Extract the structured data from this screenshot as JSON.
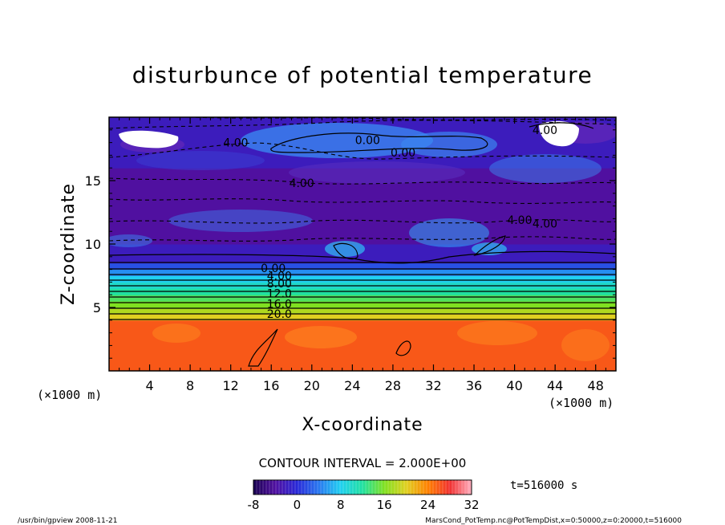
{
  "chart_data": {
    "type": "heatmap",
    "title": "disturbunce of potential temperature",
    "xlabel": "X-coordinate",
    "ylabel": "Z-coordinate",
    "x_unit_left": "(×1000 m)",
    "x_unit_right": "(×1000 m)",
    "xlim": [
      0,
      50
    ],
    "ylim": [
      0,
      20
    ],
    "x_ticks": [
      4,
      8,
      12,
      16,
      20,
      24,
      28,
      32,
      36,
      40,
      44,
      48
    ],
    "x_tick_labels": [
      "4",
      "8",
      "12",
      "16",
      "20",
      "24",
      "28",
      "32",
      "36",
      "40",
      "44",
      "48"
    ],
    "y_ticks": [
      5,
      10,
      15
    ],
    "y_tick_labels": [
      "5",
      "10",
      "15"
    ],
    "contour_interval_text": "CONTOUR INTERVAL = 2.000E+00",
    "time_text": "t=516000 s",
    "colorbar": {
      "range": [
        -8,
        32
      ],
      "ticks": [
        -8,
        0,
        8,
        16,
        24,
        32
      ],
      "tick_labels": [
        "-8",
        "0",
        "8",
        "16",
        "24",
        "32"
      ]
    },
    "bands": [
      {
        "z0": 0,
        "z1": 4.0,
        "value": 26
      },
      {
        "z0": 4.0,
        "z1": 4.5,
        "value": 20
      },
      {
        "z0": 4.5,
        "z1": 5.0,
        "value": 18
      },
      {
        "z0": 5.0,
        "z1": 5.5,
        "value": 16
      },
      {
        "z0": 5.5,
        "z1": 6.0,
        "value": 14
      },
      {
        "z0": 6.0,
        "z1": 6.5,
        "value": 12
      },
      {
        "z0": 6.5,
        "z1": 7.0,
        "value": 10
      },
      {
        "z0": 7.0,
        "z1": 7.5,
        "value": 8
      },
      {
        "z0": 7.5,
        "z1": 8.0,
        "value": 5
      },
      {
        "z0": 8.0,
        "z1": 8.5,
        "value": 2
      },
      {
        "z0": 8.5,
        "z1": 10.0,
        "value": -2
      },
      {
        "z0": 10.0,
        "z1": 16.0,
        "value": -4
      },
      {
        "z0": 16.0,
        "z1": 20.0,
        "value": -2
      }
    ],
    "contour_labels": [
      {
        "x": 12.5,
        "z": 18.0,
        "text": "4.00"
      },
      {
        "x": 25.5,
        "z": 18.2,
        "text": "0.00"
      },
      {
        "x": 29.0,
        "z": 17.2,
        "text": "0.00"
      },
      {
        "x": 19.0,
        "z": 14.8,
        "text": "4.00"
      },
      {
        "x": 43.0,
        "z": 19.0,
        "text": "4.00"
      },
      {
        "x": 40.5,
        "z": 11.9,
        "text": "4.00"
      },
      {
        "x": 43.0,
        "z": 11.6,
        "text": "4.00"
      },
      {
        "x": 16.2,
        "z": 8.1,
        "text": "0.00"
      },
      {
        "x": 16.8,
        "z": 7.5,
        "text": "4.00"
      },
      {
        "x": 16.8,
        "z": 6.9,
        "text": "8.00"
      },
      {
        "x": 16.8,
        "z": 6.1,
        "text": "12.0"
      },
      {
        "x": 16.8,
        "z": 5.3,
        "text": "16.0"
      },
      {
        "x": 16.8,
        "z": 4.5,
        "text": "20.0"
      }
    ]
  },
  "footer": {
    "left": "/usr/bin/gpview  2008-11-21",
    "right": "MarsCond_PotTemp.nc@PotTempDist,x=0:50000,z=0:20000,t=516000"
  }
}
